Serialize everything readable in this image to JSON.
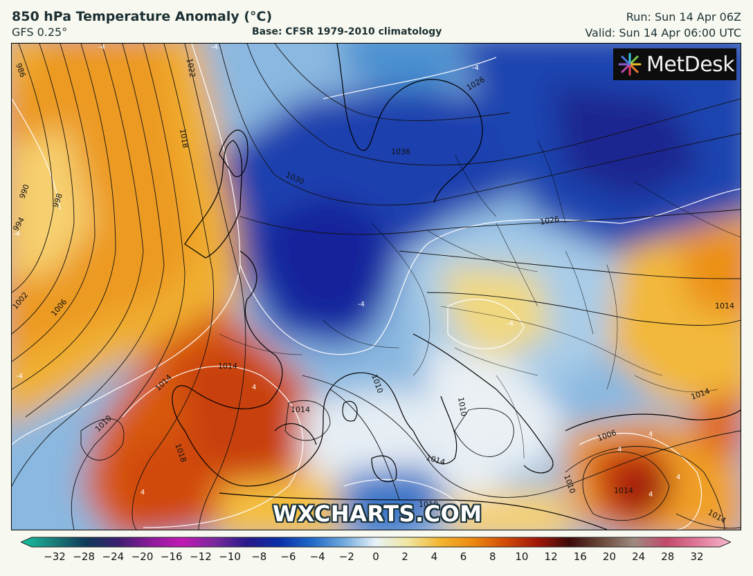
{
  "header": {
    "title": "850 hPa Temperature Anomaly (°C)",
    "model": "GFS 0.25°",
    "base": "Base: CFSR 1979-2010 climatology",
    "run": "Run: Sun 14 Apr 06Z",
    "valid": "Valid: Sun 14 Apr 06:00 UTC"
  },
  "logo": {
    "text": "MetDesk",
    "icon": "metdesk-star-icon"
  },
  "watermark": "WXCHARTS.COM",
  "colorbar": {
    "labels": [
      "-32",
      "-28",
      "-24",
      "-20",
      "-16",
      "-12",
      "-10",
      "-8",
      "-6",
      "-4",
      "-2",
      "0",
      "2",
      "4",
      "6",
      "8",
      "10",
      "12",
      "16",
      "20",
      "24",
      "28",
      "32"
    ],
    "colors": [
      "#17c3a0",
      "#1a7f7a",
      "#0f3b5a",
      "#3a1f6e",
      "#8a1a9a",
      "#c21ab4",
      "#7a2a9c",
      "#2a1a8a",
      "#0a2fa8",
      "#1f68c8",
      "#6fa8dc",
      "#e8f2f8",
      "#f0e6a0",
      "#f2b530",
      "#ec8a10",
      "#d24c06",
      "#a1180a",
      "#3e0a0a",
      "#6a4a3a",
      "#9e8a80",
      "#c24a6a",
      "#e07a9a",
      "#f4b8d0"
    ]
  },
  "map": {
    "isobar_labels": [
      "986",
      "990",
      "994",
      "998",
      "1002",
      "1006",
      "1010",
      "1014",
      "1018",
      "1022",
      "1026",
      "1030",
      "1036",
      "1026",
      "1014",
      "1014",
      "1014",
      "1010",
      "1006",
      "1010",
      "1014",
      "1018",
      "1014",
      "1014",
      "1010",
      "1010",
      "1014"
    ],
    "anomaly_labels": [
      "-4",
      "-4",
      "-4",
      "-4",
      "-4",
      "4",
      "4",
      "4",
      "4",
      "4",
      "4",
      "-4",
      "-4"
    ]
  }
}
